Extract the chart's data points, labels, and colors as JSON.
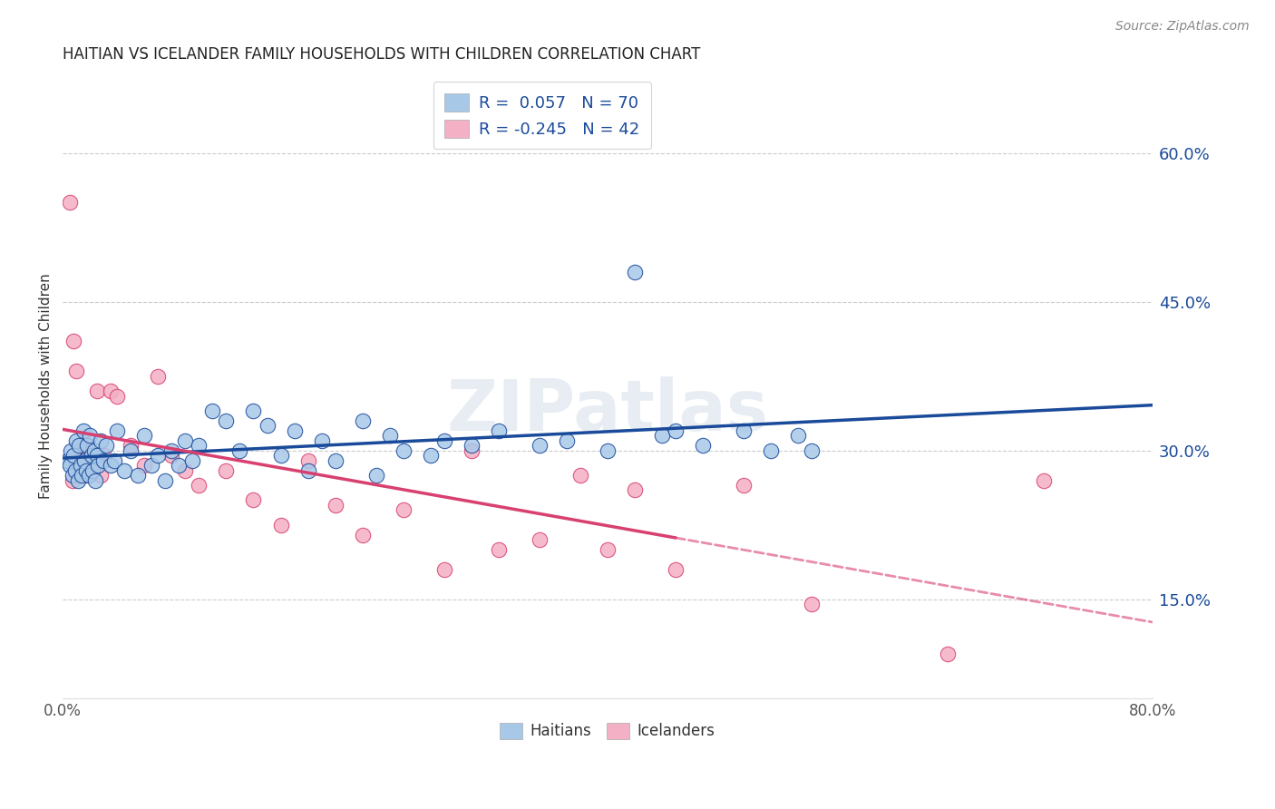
{
  "title": "HAITIAN VS ICELANDER FAMILY HOUSEHOLDS WITH CHILDREN CORRELATION CHART",
  "source": "Source: ZipAtlas.com",
  "ylabel": "Family Households with Children",
  "xlim": [
    0.0,
    80.0
  ],
  "ylim": [
    5.0,
    68.0
  ],
  "yticks": [
    15.0,
    30.0,
    45.0,
    60.0
  ],
  "xticks": [
    0.0,
    10.0,
    20.0,
    30.0,
    40.0,
    50.0,
    60.0,
    70.0,
    80.0
  ],
  "haitian_R": 0.057,
  "haitian_N": 70,
  "icelander_R": -0.245,
  "icelander_N": 42,
  "haitian_color": "#a8c8e8",
  "icelander_color": "#f4b0c4",
  "haitian_line_color": "#1a4a9a",
  "icelander_line_color": "#d84070",
  "watermark": "ZIPatlas",
  "background_color": "#ffffff",
  "haitian_x": [
    0.3,
    0.5,
    0.6,
    0.7,
    0.8,
    0.9,
    1.0,
    1.1,
    1.2,
    1.3,
    1.4,
    1.5,
    1.6,
    1.7,
    1.8,
    1.9,
    2.0,
    2.1,
    2.2,
    2.3,
    2.4,
    2.5,
    2.6,
    2.8,
    3.0,
    3.2,
    3.5,
    3.8,
    4.0,
    4.5,
    5.0,
    5.5,
    6.0,
    6.5,
    7.0,
    7.5,
    8.0,
    8.5,
    9.0,
    9.5,
    10.0,
    11.0,
    12.0,
    13.0,
    14.0,
    15.0,
    16.0,
    17.0,
    18.0,
    19.0,
    20.0,
    22.0,
    23.0,
    24.0,
    25.0,
    27.0,
    28.0,
    30.0,
    32.0,
    35.0,
    37.0,
    40.0,
    42.0,
    44.0,
    45.0,
    47.0,
    50.0,
    52.0,
    54.0,
    55.0
  ],
  "haitian_y": [
    29.0,
    28.5,
    30.0,
    27.5,
    29.5,
    28.0,
    31.0,
    27.0,
    30.5,
    28.5,
    27.5,
    32.0,
    29.0,
    28.0,
    30.5,
    27.5,
    31.5,
    29.5,
    28.0,
    30.0,
    27.0,
    29.5,
    28.5,
    31.0,
    29.0,
    30.5,
    28.5,
    29.0,
    32.0,
    28.0,
    30.0,
    27.5,
    31.5,
    28.5,
    29.5,
    27.0,
    30.0,
    28.5,
    31.0,
    29.0,
    30.5,
    34.0,
    33.0,
    30.0,
    34.0,
    32.5,
    29.5,
    32.0,
    28.0,
    31.0,
    29.0,
    33.0,
    27.5,
    31.5,
    30.0,
    29.5,
    31.0,
    30.5,
    32.0,
    30.5,
    31.0,
    30.0,
    48.0,
    31.5,
    32.0,
    30.5,
    32.0,
    30.0,
    31.5,
    30.0
  ],
  "icelander_x": [
    0.3,
    0.5,
    0.7,
    0.8,
    1.0,
    1.1,
    1.3,
    1.5,
    1.7,
    1.8,
    2.0,
    2.2,
    2.5,
    2.8,
    3.0,
    3.5,
    4.0,
    5.0,
    6.0,
    7.0,
    8.0,
    9.0,
    10.0,
    12.0,
    14.0,
    16.0,
    18.0,
    20.0,
    22.0,
    25.0,
    28.0,
    30.0,
    32.0,
    35.0,
    38.0,
    40.0,
    42.0,
    45.0,
    50.0,
    55.0,
    65.0,
    72.0
  ],
  "icelander_y": [
    29.0,
    55.0,
    27.0,
    41.0,
    38.0,
    28.5,
    30.0,
    29.0,
    27.5,
    30.5,
    30.0,
    28.0,
    36.0,
    27.5,
    29.5,
    36.0,
    35.5,
    30.5,
    28.5,
    37.5,
    29.5,
    28.0,
    26.5,
    28.0,
    25.0,
    22.5,
    29.0,
    24.5,
    21.5,
    24.0,
    18.0,
    30.0,
    20.0,
    21.0,
    27.5,
    20.0,
    26.0,
    18.0,
    26.5,
    14.5,
    9.5,
    27.0
  ],
  "icelander_line_end_x": 45.0
}
